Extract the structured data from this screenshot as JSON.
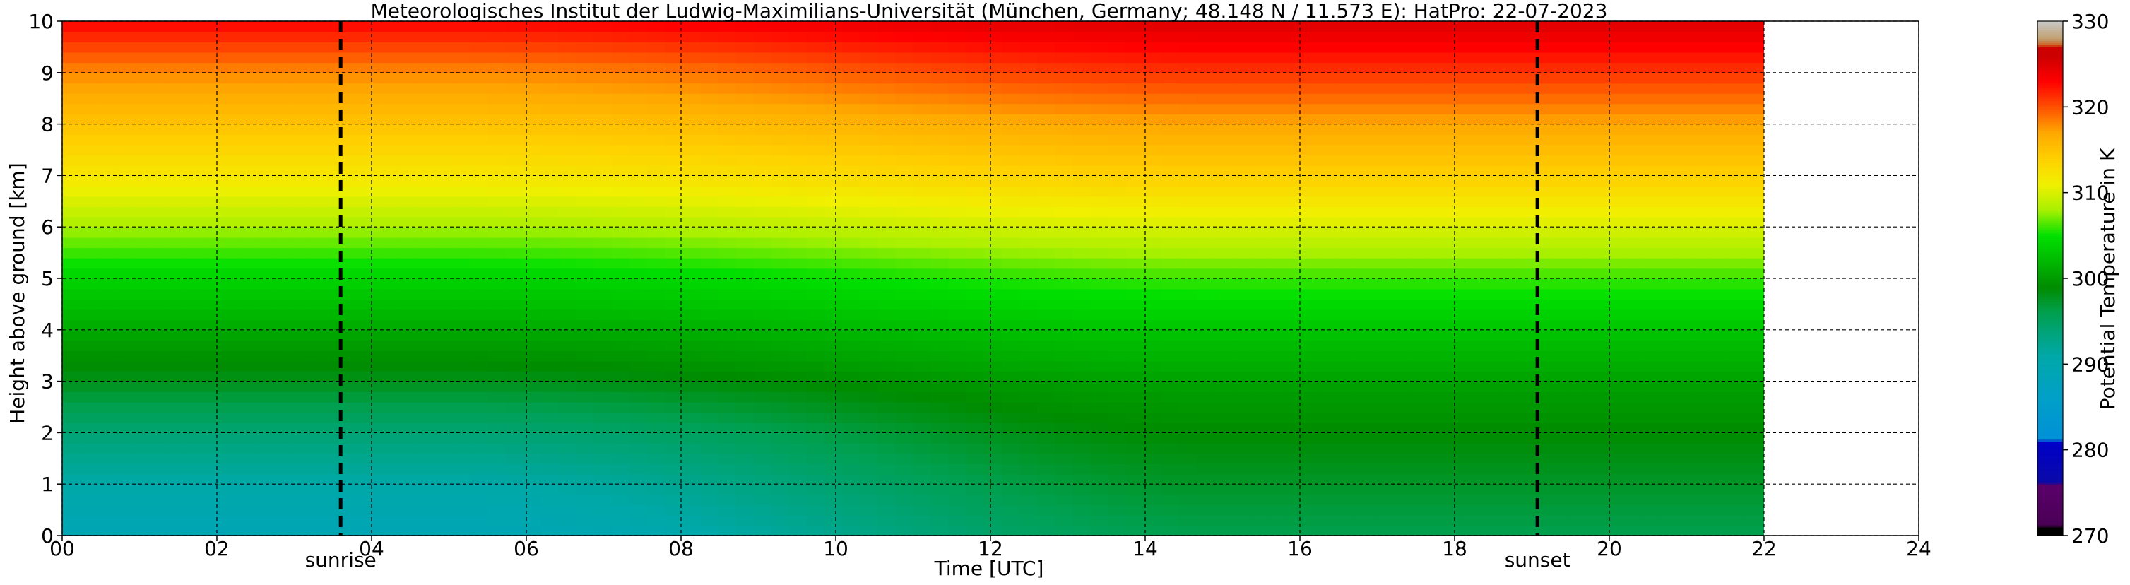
{
  "chart_data": {
    "type": "heatmap",
    "title": "Meteorologisches Institut der Ludwig-Maximilians-Universität (München, Germany; 48.148 N / 11.573 E):    HatPro: 22-07-2023",
    "xlabel": "Time [UTC]",
    "ylabel": "Height above ground [km]",
    "xlim": [
      0,
      24
    ],
    "ylim": [
      0,
      10
    ],
    "x_ticks": [
      "00",
      "02",
      "04",
      "06",
      "08",
      "10",
      "12",
      "14",
      "16",
      "18",
      "20",
      "22",
      "24"
    ],
    "y_ticks": [
      "0",
      "1",
      "2",
      "3",
      "4",
      "5",
      "6",
      "7",
      "8",
      "9",
      "10"
    ],
    "grid": true,
    "data_end_time": 22.0,
    "markers": [
      {
        "label": "sunrise",
        "time": 3.6
      },
      {
        "label": "sunset",
        "time": 19.07
      }
    ],
    "colorbar": {
      "label": "Potential Temperature in K",
      "min": 270,
      "max": 330,
      "ticks": [
        "270",
        "280",
        "290",
        "300",
        "310",
        "320",
        "330"
      ],
      "colors": [
        {
          "v": 270,
          "c": "#000000"
        },
        {
          "v": 271,
          "c": "#000000"
        },
        {
          "v": 271.2,
          "c": "#4a0055"
        },
        {
          "v": 276,
          "c": "#5a006a"
        },
        {
          "v": 276.2,
          "c": "#0a0aa8"
        },
        {
          "v": 281,
          "c": "#0000c8"
        },
        {
          "v": 281.2,
          "c": "#0090d8"
        },
        {
          "v": 286,
          "c": "#00a0c8"
        },
        {
          "v": 291,
          "c": "#00a8a8"
        },
        {
          "v": 296,
          "c": "#00a050"
        },
        {
          "v": 299,
          "c": "#008c00"
        },
        {
          "v": 302,
          "c": "#00b800"
        },
        {
          "v": 305,
          "c": "#00e000"
        },
        {
          "v": 308,
          "c": "#a8f000"
        },
        {
          "v": 311,
          "c": "#f0f000"
        },
        {
          "v": 314,
          "c": "#ffd000"
        },
        {
          "v": 317,
          "c": "#ffa800"
        },
        {
          "v": 320,
          "c": "#ff5000"
        },
        {
          "v": 323,
          "c": "#ff0000"
        },
        {
          "v": 326,
          "c": "#cc0000"
        },
        {
          "v": 327,
          "c": "#cc0000"
        },
        {
          "v": 327.2,
          "c": "#d06020"
        },
        {
          "v": 328,
          "c": "#c0a070"
        },
        {
          "v": 330,
          "c": "#c8c8c8"
        }
      ]
    },
    "theta_profile_midnight": [
      {
        "h": 0,
        "t": 289
      },
      {
        "h": 1,
        "t": 291
      },
      {
        "h": 2,
        "t": 294
      },
      {
        "h": 3,
        "t": 298
      },
      {
        "h": 4,
        "t": 301
      },
      {
        "h": 5,
        "t": 304
      },
      {
        "h": 6,
        "t": 308
      },
      {
        "h": 7,
        "t": 312
      },
      {
        "h": 8,
        "t": 315
      },
      {
        "h": 9,
        "t": 318
      },
      {
        "h": 10,
        "t": 323
      }
    ],
    "theta_profile_afternoon": [
      {
        "h": 0,
        "t": 296
      },
      {
        "h": 1,
        "t": 297.5
      },
      {
        "h": 2,
        "t": 299
      },
      {
        "h": 3,
        "t": 300.5
      },
      {
        "h": 4,
        "t": 303
      },
      {
        "h": 5,
        "t": 306
      },
      {
        "h": 6,
        "t": 310
      },
      {
        "h": 7,
        "t": 314
      },
      {
        "h": 8,
        "t": 317
      },
      {
        "h": 9,
        "t": 321
      },
      {
        "h": 10,
        "t": 325
      }
    ]
  }
}
